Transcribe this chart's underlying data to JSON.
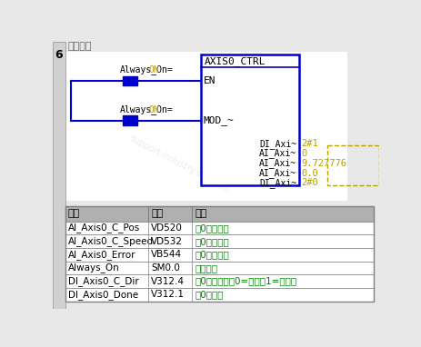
{
  "bg_color": "#e8e8e8",
  "ladder_bg": "#ffffff",
  "title_num": "6",
  "title_text": "输入注释",
  "block_title": "AXIS0_CTRL",
  "block_inputs": [
    "EN",
    "MOD_~"
  ],
  "block_outputs": [
    "DI_Axi~",
    "AI_Axi~",
    "AI_Axi~",
    "AI_Axi~",
    "DI_Axi~"
  ],
  "output_values": [
    "2#1",
    "0",
    "9.727776",
    "0.0",
    "2#0"
  ],
  "contact_labels_base": "Always_On=",
  "contact_labels_on": "ON",
  "contact_color": "#0000cc",
  "block_border_color": "#0000cc",
  "on_color": "#b8a000",
  "output_value_color": "#b8a000",
  "table_header": [
    "符号",
    "地址",
    "注释"
  ],
  "table_rows": [
    [
      "AI_Axis0_C_Pos",
      "VD520",
      "轴0当前位置"
    ],
    [
      "AI_Axis0_C_Speed",
      "VD532",
      "轴0当前速度"
    ],
    [
      "AI_Axis0_Error",
      "VB544",
      "轴0错误代码"
    ],
    [
      "Always_On",
      "SM0.0",
      "始终接通"
    ],
    [
      "DI_Axis0_C_Dir",
      "V312.4",
      "轴0点动方向（0=正转，1=反转）"
    ],
    [
      "DI_Axis0_Done",
      "V312.1",
      "轴0已完成"
    ]
  ],
  "table_header_bg": "#b0b0b0",
  "table_row_bg": "#ffffff",
  "table_comment_color": "#008000",
  "table_border_color": "#808080",
  "left_bar_color": "#808080"
}
